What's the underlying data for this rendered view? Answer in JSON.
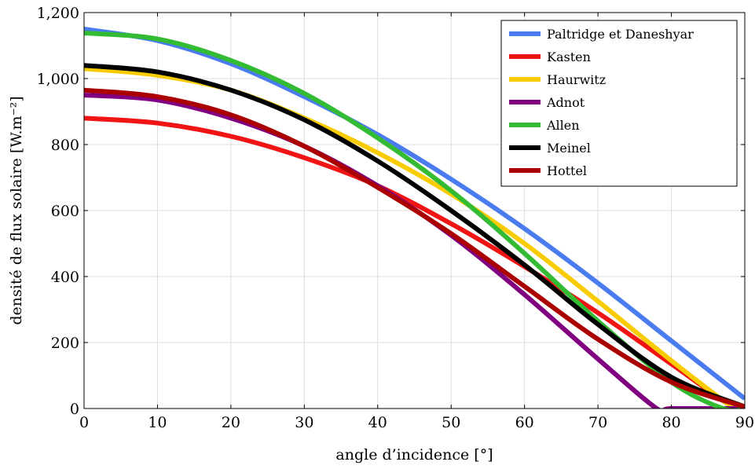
{
  "chart_data": {
    "type": "line",
    "xlabel": "angle d’incidence [°]",
    "ylabel": "densité de flux solaire [W.m⁻²]",
    "xlim": [
      0,
      90
    ],
    "ylim": [
      0,
      1200
    ],
    "xticks": [
      0,
      10,
      20,
      30,
      40,
      50,
      60,
      70,
      80,
      90
    ],
    "yticks": [
      0,
      200,
      400,
      600,
      800,
      1000,
      1200
    ],
    "xtick_labels": [
      "0",
      "10",
      "20",
      "30",
      "40",
      "50",
      "60",
      "70",
      "80",
      "90"
    ],
    "ytick_labels": [
      "0",
      "200",
      "400",
      "600",
      "800",
      "1,000",
      "1,200"
    ],
    "grid": true,
    "legend_position": "top-right",
    "series": [
      {
        "name": "Paltridge et Daneshyar",
        "color": "#4a7cf0",
        "x": [
          0,
          10,
          20,
          30,
          40,
          50,
          60,
          70,
          80,
          90
        ],
        "y": [
          1150,
          1115,
          1045,
          945,
          830,
          695,
          545,
          380,
          205,
          30
        ]
      },
      {
        "name": "Kasten",
        "color": "#f01414",
        "x": [
          0,
          10,
          20,
          30,
          40,
          50,
          60,
          70,
          80,
          88,
          90
        ],
        "y": [
          880,
          865,
          825,
          760,
          675,
          560,
          430,
          290,
          135,
          10,
          5
        ]
      },
      {
        "name": "Haurwitz",
        "color": "#f8cc00",
        "x": [
          0,
          10,
          20,
          30,
          40,
          50,
          60,
          70,
          80,
          88,
          90
        ],
        "y": [
          1030,
          1010,
          965,
          880,
          775,
          650,
          500,
          325,
          145,
          10,
          5
        ]
      },
      {
        "name": "Adnot",
        "color": "#800080",
        "x": [
          0,
          10,
          20,
          30,
          40,
          50,
          60,
          70,
          78,
          80,
          90
        ],
        "y": [
          950,
          935,
          880,
          795,
          675,
          525,
          345,
          150,
          0,
          0,
          0
        ]
      },
      {
        "name": "Allen",
        "color": "#33bb33",
        "x": [
          0,
          10,
          20,
          30,
          40,
          50,
          60,
          70,
          80,
          87,
          90
        ],
        "y": [
          1138,
          1120,
          1055,
          955,
          820,
          660,
          470,
          265,
          80,
          0,
          0
        ]
      },
      {
        "name": "Meinel",
        "color": "#000000",
        "x": [
          0,
          10,
          20,
          30,
          40,
          50,
          60,
          70,
          80,
          90
        ],
        "y": [
          1040,
          1020,
          965,
          875,
          750,
          600,
          435,
          255,
          95,
          5
        ]
      },
      {
        "name": "Hottel",
        "color": "#aa0000",
        "x": [
          0,
          10,
          20,
          30,
          40,
          50,
          60,
          70,
          80,
          90
        ],
        "y": [
          965,
          945,
          890,
          795,
          670,
          530,
          370,
          210,
          80,
          5
        ]
      }
    ]
  }
}
